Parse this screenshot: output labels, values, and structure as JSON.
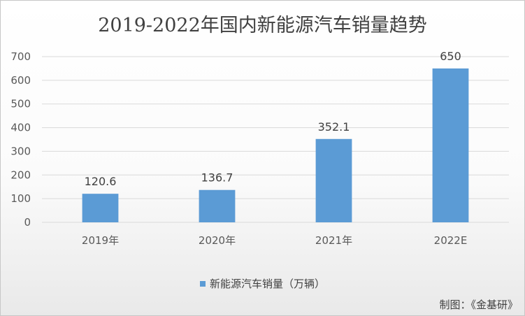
{
  "chart_data": {
    "type": "bar",
    "title": "2019-2022年国内新能源汽车销量趋势",
    "categories": [
      "2019年",
      "2020年",
      "2021年",
      "2022E"
    ],
    "series": [
      {
        "name": "新能源汽车销量（万辆）",
        "values": [
          120.6,
          136.7,
          352.1,
          650
        ],
        "labels": [
          "120.6",
          "136.7",
          "352.1",
          "650"
        ]
      }
    ],
    "ylim": [
      0,
      700
    ],
    "yticks": [
      0,
      100,
      200,
      300,
      400,
      500,
      600,
      700
    ],
    "grid": true,
    "legend_position": "bottom",
    "bar_color": "#5b9bd5"
  },
  "source_note": "制图：《金基研》"
}
